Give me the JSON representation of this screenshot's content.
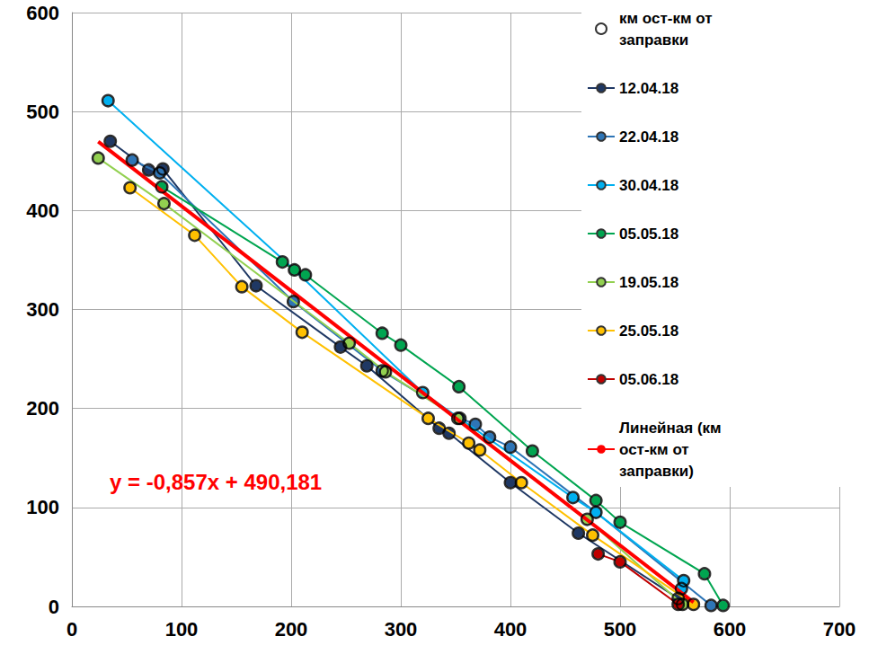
{
  "chart_data": {
    "type": "line",
    "annotation": "y = -0,857x + 490,181",
    "xlim": [
      0,
      700
    ],
    "xticks": [
      0,
      100,
      200,
      300,
      400,
      500,
      600,
      700
    ],
    "ylim": [
      0,
      600
    ],
    "yticks": [
      0,
      100,
      200,
      300,
      400,
      500,
      600
    ],
    "grid": true,
    "legend": "right",
    "series": [
      {
        "name": "км ост-км от заправки",
        "type": "scatter",
        "color": "#000000",
        "marker": "circle-open",
        "values": [
          [
            35,
            470
          ],
          [
            70,
            441
          ],
          [
            83,
            442
          ],
          [
            168,
            324
          ],
          [
            245,
            262
          ],
          [
            269,
            243
          ],
          [
            335,
            180
          ],
          [
            344,
            175
          ],
          [
            400,
            125
          ],
          [
            462,
            74
          ],
          [
            553,
            8
          ],
          [
            55,
            451
          ],
          [
            80,
            438
          ],
          [
            202,
            308
          ],
          [
            283,
            238
          ],
          [
            354,
            190
          ],
          [
            368,
            184
          ],
          [
            381,
            171
          ],
          [
            400,
            161
          ],
          [
            478,
            95
          ],
          [
            583,
            1
          ],
          [
            33,
            511
          ],
          [
            203,
            340
          ],
          [
            320,
            216
          ],
          [
            457,
            110
          ],
          [
            558,
            26
          ],
          [
            556,
            18
          ],
          [
            82,
            424
          ],
          [
            192,
            348
          ],
          [
            213,
            335
          ],
          [
            283,
            276
          ],
          [
            300,
            264
          ],
          [
            353,
            222
          ],
          [
            420,
            157
          ],
          [
            478,
            107
          ],
          [
            500,
            85
          ],
          [
            577,
            33
          ],
          [
            594,
            1
          ],
          [
            24,
            453
          ],
          [
            84,
            407
          ],
          [
            253,
            266
          ],
          [
            286,
            237
          ],
          [
            352,
            190
          ],
          [
            470,
            88
          ],
          [
            557,
            2
          ],
          [
            53,
            423
          ],
          [
            112,
            375
          ],
          [
            155,
            323
          ],
          [
            210,
            277
          ],
          [
            325,
            190
          ],
          [
            362,
            165
          ],
          [
            372,
            158
          ],
          [
            410,
            125
          ],
          [
            475,
            72
          ],
          [
            567,
            2
          ],
          [
            480,
            53
          ],
          [
            500,
            45
          ],
          [
            553,
            2
          ]
        ]
      },
      {
        "name": "12.04.18",
        "type": "line",
        "color": "#1f3864",
        "marker": "circle",
        "line_style": "solid",
        "values": [
          [
            35,
            470
          ],
          [
            70,
            441
          ],
          [
            83,
            442
          ],
          [
            168,
            324
          ],
          [
            245,
            262
          ],
          [
            269,
            243
          ],
          [
            335,
            180
          ],
          [
            344,
            175
          ],
          [
            400,
            125
          ],
          [
            462,
            74
          ],
          [
            553,
            8
          ]
        ]
      },
      {
        "name": "22.04.18",
        "type": "line",
        "color": "#2e75b6",
        "marker": "circle",
        "line_style": "solid",
        "values": [
          [
            55,
            451
          ],
          [
            80,
            438
          ],
          [
            202,
            308
          ],
          [
            283,
            238
          ],
          [
            354,
            190
          ],
          [
            368,
            184
          ],
          [
            381,
            171
          ],
          [
            400,
            161
          ],
          [
            478,
            95
          ],
          [
            583,
            1
          ]
        ]
      },
      {
        "name": "30.04.18",
        "type": "line",
        "color": "#00b0f0",
        "marker": "circle",
        "line_style": "solid",
        "values": [
          [
            33,
            511
          ],
          [
            203,
            340
          ],
          [
            320,
            216
          ],
          [
            457,
            110
          ],
          [
            478,
            95
          ],
          [
            558,
            26
          ],
          [
            556,
            18
          ]
        ]
      },
      {
        "name": "05.05.18",
        "type": "line",
        "color": "#00a550",
        "marker": "circle",
        "line_style": "solid",
        "values": [
          [
            82,
            424
          ],
          [
            192,
            348
          ],
          [
            203,
            340
          ],
          [
            213,
            335
          ],
          [
            283,
            276
          ],
          [
            300,
            264
          ],
          [
            353,
            222
          ],
          [
            420,
            157
          ],
          [
            478,
            107
          ],
          [
            500,
            85
          ],
          [
            577,
            33
          ],
          [
            594,
            1
          ]
        ]
      },
      {
        "name": "19.05.18",
        "type": "line",
        "color": "#92d050",
        "marker": "circle",
        "line_style": "solid",
        "values": [
          [
            24,
            453
          ],
          [
            84,
            407
          ],
          [
            253,
            266
          ],
          [
            286,
            237
          ],
          [
            352,
            190
          ],
          [
            470,
            88
          ],
          [
            557,
            2
          ]
        ]
      },
      {
        "name": "25.05.18",
        "type": "line",
        "color": "#ffc000",
        "marker": "circle",
        "line_style": "solid",
        "values": [
          [
            53,
            423
          ],
          [
            112,
            375
          ],
          [
            155,
            323
          ],
          [
            210,
            277
          ],
          [
            325,
            190
          ],
          [
            362,
            165
          ],
          [
            372,
            158
          ],
          [
            410,
            125
          ],
          [
            475,
            72
          ],
          [
            567,
            2
          ]
        ]
      },
      {
        "name": "05.06.18",
        "type": "line",
        "color": "#c00000",
        "marker": "circle",
        "line_style": "solid",
        "values": [
          [
            480,
            53
          ],
          [
            500,
            45
          ],
          [
            553,
            2
          ]
        ]
      },
      {
        "name": "Линейная (км ост-км от заправки)",
        "type": "line",
        "color": "#ff0000",
        "marker": "none",
        "line_style": "solid",
        "values": [
          [
            24,
            469.613
          ],
          [
            567,
            4.262
          ]
        ]
      }
    ]
  }
}
